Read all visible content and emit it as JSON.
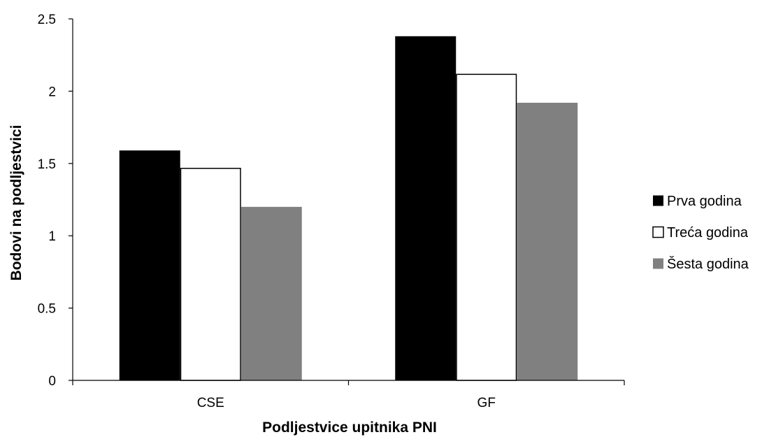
{
  "chart_data": {
    "type": "bar",
    "title": "",
    "xlabel": "Podljestvice upitnika PNI",
    "ylabel": "Bodovi na podljestvici",
    "categories": [
      "CSE",
      "GF"
    ],
    "series": [
      {
        "name": "Prva godina",
        "values": [
          1.59,
          2.38
        ],
        "color": "#000000",
        "stroke": "#000000"
      },
      {
        "name": "Treća godina",
        "values": [
          1.47,
          2.12
        ],
        "color": "#ffffff",
        "stroke": "#000000"
      },
      {
        "name": "Šesta godina",
        "values": [
          1.2,
          1.92
        ],
        "color": "#808080",
        "stroke": "#808080"
      }
    ],
    "ylim": [
      0,
      2.5
    ],
    "yticks": [
      0,
      0.5,
      1,
      1.5,
      2,
      2.5
    ],
    "ytick_labels": [
      "0",
      "0.5",
      "1",
      "1.5",
      "2",
      "2.5"
    ],
    "grid": false,
    "legend_position": "right"
  }
}
